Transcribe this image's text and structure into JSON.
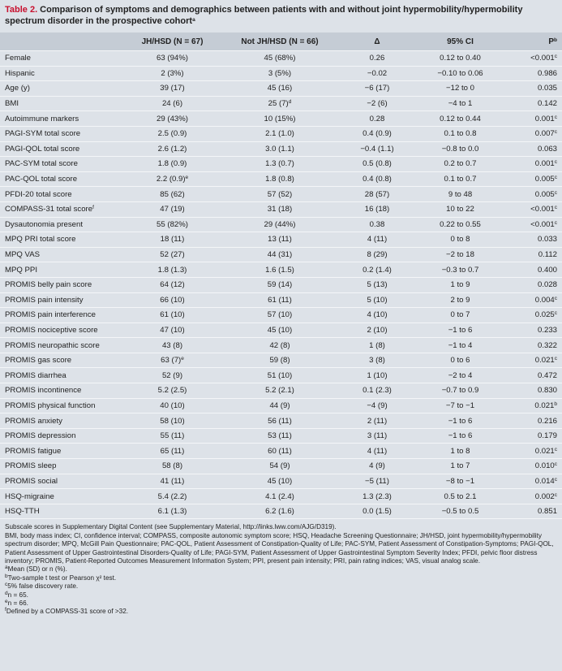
{
  "title": {
    "label": "Table 2.",
    "text": "Comparison of symptoms and demographics between patients with and without joint hypermobility/hypermobility spectrum disorder in the prospective cohort",
    "sup": "a"
  },
  "table": {
    "header": [
      "",
      "JH/HSD (N = 67)",
      "Not JH/HSD (N = 66)",
      "Δ",
      "95% CI",
      {
        "text": "P",
        "sup": "b"
      }
    ],
    "rows": [
      [
        "Female",
        "63 (94%)",
        "45 (68%)",
        "0.26",
        "0.12 to 0.40",
        {
          "text": "<0.001",
          "sup": "c"
        }
      ],
      [
        "Hispanic",
        "2 (3%)",
        "3 (5%)",
        "−0.02",
        "−0.10 to 0.06",
        "0.986"
      ],
      [
        "Age (y)",
        "39 (17)",
        "45 (16)",
        "−6 (17)",
        "−12 to 0",
        "0.035"
      ],
      [
        "BMI",
        "24 (6)",
        {
          "text": "25 (7)",
          "sup": "d"
        },
        "−2 (6)",
        "−4 to 1",
        "0.142"
      ],
      [
        "Autoimmune markers",
        "29 (43%)",
        "10 (15%)",
        "0.28",
        "0.12 to 0.44",
        {
          "text": "0.001",
          "sup": "c"
        }
      ],
      [
        "PAGI-SYM total score",
        "2.5 (0.9)",
        "2.1 (1.0)",
        "0.4 (0.9)",
        "0.1 to 0.8",
        {
          "text": "0.007",
          "sup": "c"
        }
      ],
      [
        "PAGI-QOL total score",
        "2.6 (1.2)",
        "3.0 (1.1)",
        "−0.4 (1.1)",
        "−0.8 to 0.0",
        "0.063"
      ],
      [
        "PAC-SYM total score",
        "1.8 (0.9)",
        "1.3 (0.7)",
        "0.5 (0.8)",
        "0.2 to 0.7",
        {
          "text": "0.001",
          "sup": "c"
        }
      ],
      [
        "PAC-QOL total score",
        {
          "text": "2.2 (0.9)",
          "sup": "e"
        },
        "1.8 (0.8)",
        "0.4 (0.8)",
        "0.1 to 0.7",
        {
          "text": "0.005",
          "sup": "c"
        }
      ],
      [
        "PFDI-20 total score",
        "85 (62)",
        "57 (52)",
        "28 (57)",
        "9 to 48",
        {
          "text": "0.005",
          "sup": "c"
        }
      ],
      [
        {
          "text": "COMPASS-31 total score",
          "sup": "f"
        },
        "47 (19)",
        "31 (18)",
        "16 (18)",
        "10 to 22",
        {
          "text": "<0.001",
          "sup": "c"
        }
      ],
      [
        "Dysautonomia present",
        "55 (82%)",
        "29 (44%)",
        "0.38",
        "0.22 to 0.55",
        {
          "text": "<0.001",
          "sup": "c"
        }
      ],
      [
        "MPQ PRI total score",
        "18 (11)",
        "13 (11)",
        "4 (11)",
        "0 to 8",
        "0.033"
      ],
      [
        "MPQ VAS",
        "52 (27)",
        "44 (31)",
        "8 (29)",
        "−2 to 18",
        "0.112"
      ],
      [
        "MPQ PPI",
        "1.8 (1.3)",
        "1.6 (1.5)",
        "0.2 (1.4)",
        "−0.3 to 0.7",
        "0.400"
      ],
      [
        "PROMIS belly pain score",
        "64 (12)",
        "59 (14)",
        "5 (13)",
        "1 to 9",
        "0.028"
      ],
      [
        "PROMIS pain intensity",
        "66 (10)",
        "61 (11)",
        "5 (10)",
        "2 to 9",
        {
          "text": "0.004",
          "sup": "c"
        }
      ],
      [
        "PROMIS pain interference",
        "61 (10)",
        "57 (10)",
        "4 (10)",
        "0 to 7",
        {
          "text": "0.025",
          "sup": "c"
        }
      ],
      [
        "PROMIS nociceptive score",
        "47 (10)",
        "45 (10)",
        "2 (10)",
        "−1 to 6",
        "0.233"
      ],
      [
        "PROMIS neuropathic score",
        "43 (8)",
        "42 (8)",
        "1 (8)",
        "−1 to 4",
        "0.322"
      ],
      [
        "PROMIS gas score",
        {
          "text": "63 (7)",
          "sup": "e"
        },
        "59 (8)",
        "3 (8)",
        "0 to 6",
        {
          "text": "0.021",
          "sup": "c"
        }
      ],
      [
        "PROMIS diarrhea",
        "52 (9)",
        "51 (10)",
        "1 (10)",
        "−2 to 4",
        "0.472"
      ],
      [
        "PROMIS incontinence",
        "5.2 (2.5)",
        "5.2 (2.1)",
        "0.1 (2.3)",
        "−0.7 to 0.9",
        "0.830"
      ],
      [
        "PROMIS physical function",
        "40 (10)",
        "44 (9)",
        "−4 (9)",
        "−7 to −1",
        {
          "text": "0.021",
          "sup": "b"
        }
      ],
      [
        "PROMIS anxiety",
        "58 (10)",
        "56 (11)",
        "2 (11)",
        "−1 to 6",
        "0.216"
      ],
      [
        "PROMIS depression",
        "55 (11)",
        "53 (11)",
        "3 (11)",
        "−1 to 6",
        "0.179"
      ],
      [
        "PROMIS fatigue",
        "65 (11)",
        "60 (11)",
        "4 (11)",
        "1 to 8",
        {
          "text": "0.021",
          "sup": "c"
        }
      ],
      [
        "PROMIS sleep",
        "58 (8)",
        "54 (9)",
        "4 (9)",
        "1 to 7",
        {
          "text": "0.010",
          "sup": "c"
        }
      ],
      [
        "PROMIS social",
        "41 (11)",
        "45 (10)",
        "−5 (11)",
        "−8 to −1",
        {
          "text": "0.014",
          "sup": "c"
        }
      ],
      [
        "HSQ-migraine",
        "5.4 (2.2)",
        "4.1 (2.4)",
        "1.3 (2.3)",
        "0.5 to 2.1",
        {
          "text": "0.002",
          "sup": "c"
        }
      ],
      [
        "HSQ-TTH",
        "6.1 (1.3)",
        "6.2 (1.6)",
        "0.0 (1.5)",
        "−0.5 to 0.5",
        "0.851"
      ]
    ]
  },
  "footnotes": {
    "paragraphs": [
      "Subscale scores in Supplementary Digital Content (see Supplementary Material, http://links.lww.com/AJG/D319).",
      "BMI, body mass index; CI, confidence interval; COMPASS, composite autonomic symptom score; HSQ, Headache Screening Questionnaire; JH/HSD, joint hypermobility/hypermobility spectrum disorder; MPQ, McGill Pain Questionnaire; PAC-QOL, Patient Assessment of Constipation-Quality of Life; PAC-SYM, Patient Assessment of Constipation-Symptoms; PAGI-QOL, Patient Assessment of Upper Gastrointestinal Disorders-Quality of Life; PAGI-SYM, Patient Assessment of Upper Gastrointestinal Symptom Severity Index; PFDI, pelvic floor distress inventory; PROMIS, Patient-Reported Outcomes Measurement Information System; PPI, present pain intensity; PRI, pain rating indices; VAS, visual analog scale."
    ],
    "notes": [
      {
        "mark": "a",
        "text": "Mean (SD) or n (%)."
      },
      {
        "mark": "b",
        "text": "Two-sample t test or Pearson χ² test."
      },
      {
        "mark": "c",
        "text": "5% false discovery rate."
      },
      {
        "mark": "d",
        "text": "n = 65."
      },
      {
        "mark": "e",
        "text": "n = 66."
      },
      {
        "mark": "f",
        "text": "Defined by a COMPASS-31 score of >32."
      }
    ]
  }
}
